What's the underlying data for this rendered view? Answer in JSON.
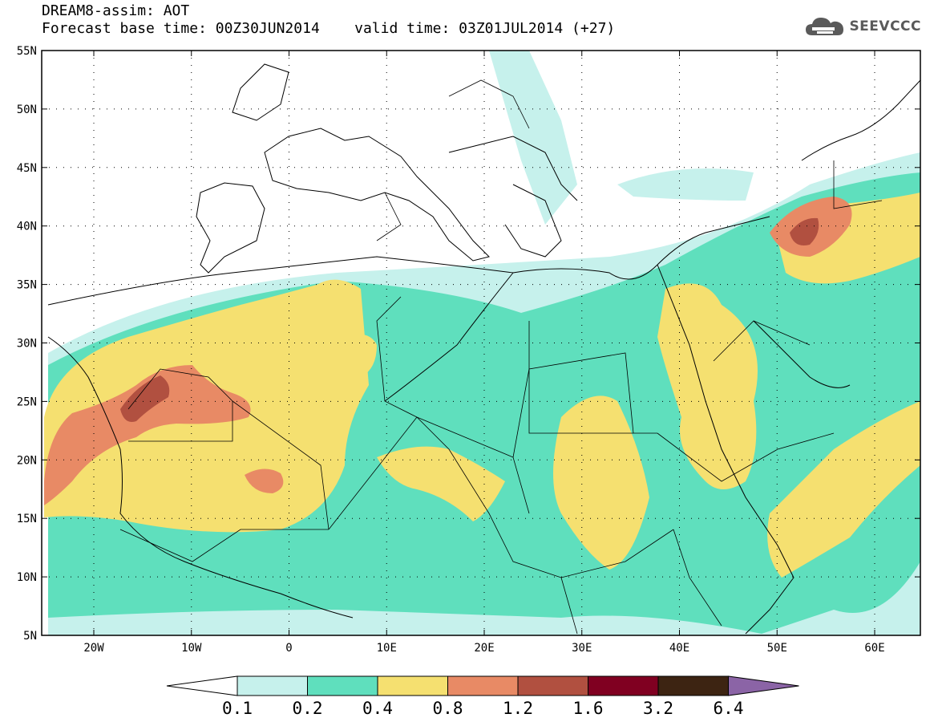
{
  "header": {
    "line1": "DREAM8-assim: AOT",
    "line2": "Forecast base time: 00Z30JUN2014    valid time: 03Z01JUL2014 (+27)"
  },
  "logo": {
    "text": "SEEVCCC",
    "icon": "cloud-icon"
  },
  "map": {
    "lat_ticks": [
      "55N",
      "50N",
      "45N",
      "40N",
      "35N",
      "30N",
      "25N",
      "20N",
      "15N",
      "10N",
      "5N"
    ],
    "lon_ticks": [
      "20W",
      "10W",
      "0",
      "10E",
      "20E",
      "30E",
      "40E",
      "50E",
      "60E"
    ]
  },
  "colorbar": {
    "labels": [
      "0.1",
      "0.2",
      "0.4",
      "0.8",
      "1.2",
      "1.6",
      "3.2",
      "6.4"
    ],
    "colors": [
      "#c6f1ec",
      "#5fdfbd",
      "#f5e070",
      "#e88a65",
      "#b15040",
      "#800021",
      "#3d2412",
      "#8b64a6"
    ]
  }
}
